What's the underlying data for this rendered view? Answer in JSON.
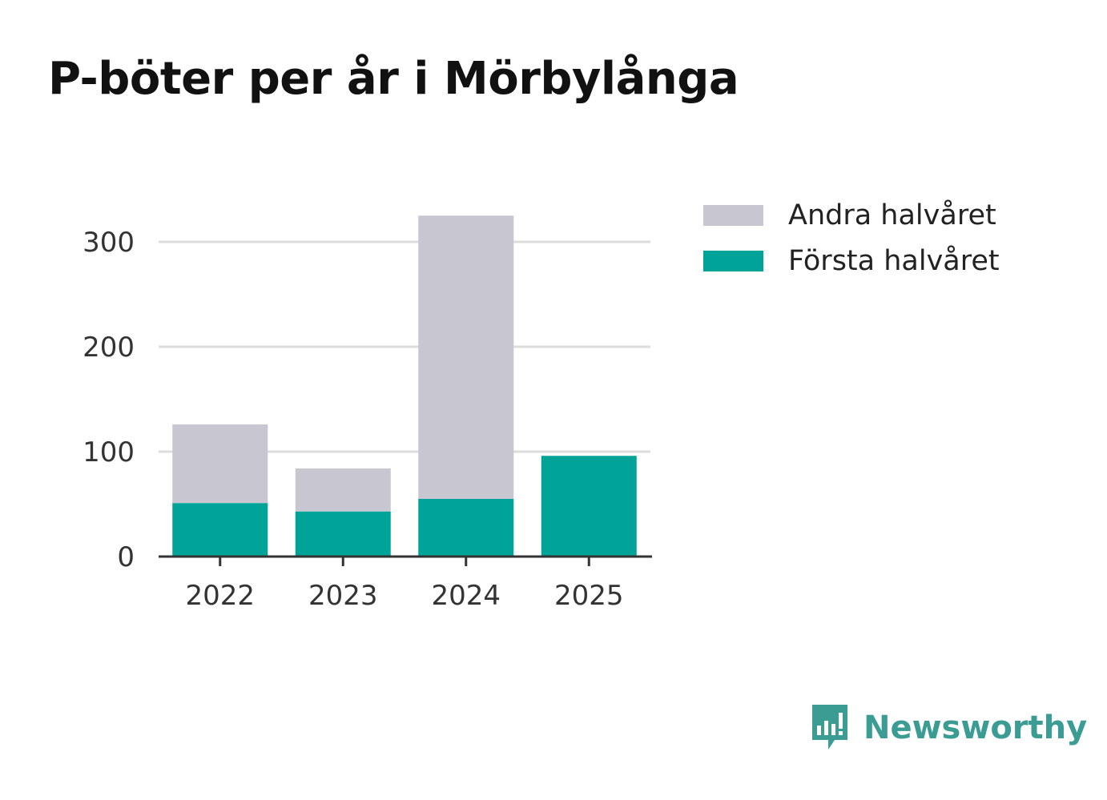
{
  "title": "P-böter per år i Mörbylånga",
  "colors": {
    "forsta": "#00a398",
    "andra": "#c7c6d1",
    "grid": "#dddddd",
    "axis": "#333333",
    "brand": "#3a9c93"
  },
  "chart_data": {
    "type": "bar",
    "stacked": true,
    "categories": [
      "2022",
      "2023",
      "2024",
      "2025"
    ],
    "series": [
      {
        "name": "Första halvåret",
        "values": [
          51,
          43,
          55,
          96
        ]
      },
      {
        "name": "Andra halvåret",
        "values": [
          75,
          41,
          270,
          0
        ]
      }
    ],
    "yticks": [
      "0",
      "100",
      "200",
      "300"
    ],
    "ylim": [
      0,
      330
    ],
    "grid": true,
    "legend": "right"
  },
  "legend": {
    "items": [
      {
        "label": "Andra halvåret",
        "color": "#c7c6d1"
      },
      {
        "label": "Första halvåret",
        "color": "#00a398"
      }
    ]
  },
  "logo": {
    "text": "Newsworthy",
    "icon": "newsworthy-logo-icon"
  }
}
